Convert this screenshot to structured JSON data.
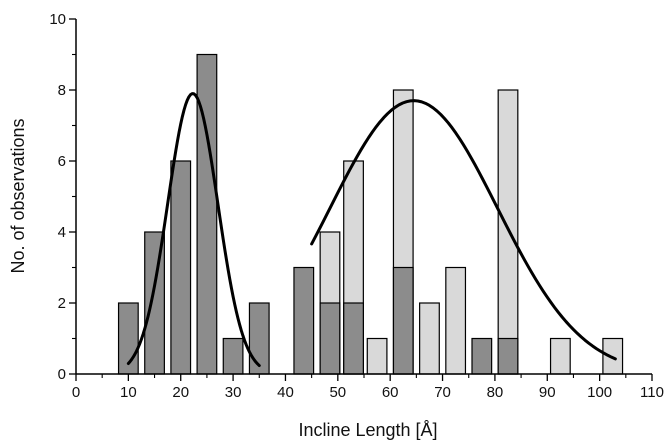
{
  "chart_data": {
    "type": "bar",
    "title": "",
    "xlabel": "Incline Length [Å]",
    "ylabel": "No. of observations",
    "xlim": [
      0,
      110
    ],
    "ylim": [
      0,
      10
    ],
    "x_ticks": [
      0,
      10,
      20,
      30,
      40,
      50,
      60,
      70,
      80,
      90,
      100,
      110
    ],
    "x_tick_labels": [
      "0",
      "10",
      "20",
      "30",
      "40",
      "50",
      "60",
      "70",
      "80",
      "90",
      "100",
      "110"
    ],
    "y_ticks": [
      0,
      2,
      4,
      6,
      8,
      10
    ],
    "y_tick_labels": [
      "0",
      "2",
      "4",
      "6",
      "8",
      "10"
    ],
    "grid": false,
    "legend": "none",
    "bar_width": 3.75,
    "series": [
      {
        "role": "light histogram",
        "color": "#d9d9d9",
        "bars": [
          {
            "x": 48.5,
            "y": 4
          },
          {
            "x": 53,
            "y": 6
          },
          {
            "x": 57.5,
            "y": 1
          },
          {
            "x": 62.5,
            "y": 8
          },
          {
            "x": 67.5,
            "y": 2
          },
          {
            "x": 72.5,
            "y": 3
          },
          {
            "x": 82.5,
            "y": 8
          },
          {
            "x": 92.5,
            "y": 1
          },
          {
            "x": 102.5,
            "y": 1
          }
        ]
      },
      {
        "role": "dark histogram",
        "color": "#8c8c8c",
        "bars": [
          {
            "x": 10,
            "y": 2
          },
          {
            "x": 15,
            "y": 4
          },
          {
            "x": 20,
            "y": 6
          },
          {
            "x": 25,
            "y": 9
          },
          {
            "x": 30,
            "y": 1
          },
          {
            "x": 35,
            "y": 2
          },
          {
            "x": 43.5,
            "y": 3
          },
          {
            "x": 48.5,
            "y": 2
          },
          {
            "x": 53,
            "y": 2
          },
          {
            "x": 62.5,
            "y": 3
          },
          {
            "x": 77.5,
            "y": 1
          },
          {
            "x": 82.5,
            "y": 1
          }
        ]
      }
    ],
    "fits": [
      {
        "type": "gaussian",
        "amplitude": 7.9,
        "center": 22.3,
        "sigma": 4.8,
        "x_range": [
          10,
          35
        ],
        "color": "#000000"
      },
      {
        "type": "gaussian",
        "amplitude": 7.7,
        "center": 64.5,
        "sigma": 16,
        "x_range": [
          45,
          103
        ],
        "color": "#000000"
      }
    ]
  }
}
